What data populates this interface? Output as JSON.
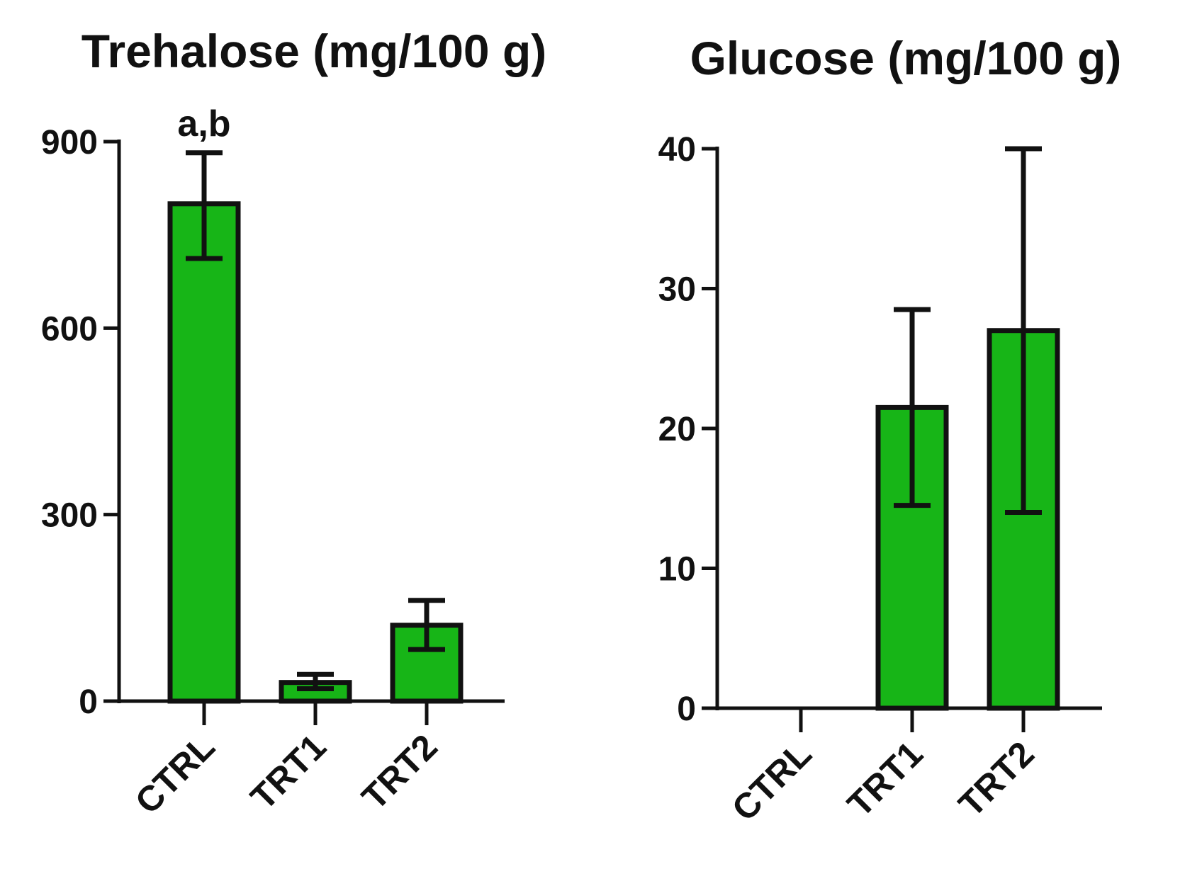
{
  "chart_data": [
    {
      "type": "bar",
      "title": "Trehalose (mg/100 g)",
      "xlabel": "",
      "ylabel": "",
      "categories": [
        "CTRL",
        "TRT1",
        "TRT2"
      ],
      "values": [
        800,
        30,
        122
      ],
      "errors": [
        [
          712,
          882
        ],
        [
          20,
          43
        ],
        [
          83,
          162
        ]
      ],
      "ylim": [
        0,
        900
      ],
      "yticks": [
        "0",
        "300",
        "600",
        "900"
      ],
      "annotations": [
        {
          "category": "CTRL",
          "text": "a,b"
        }
      ],
      "bar_color": "#17b517",
      "grid": false
    },
    {
      "type": "bar",
      "title": "Glucose (mg/100 g)",
      "xlabel": "",
      "ylabel": "",
      "categories": [
        "CTRL",
        "TRT1",
        "TRT2"
      ],
      "values": [
        0,
        21.5,
        27
      ],
      "errors": [
        null,
        [
          14.5,
          28.5
        ],
        [
          14,
          40
        ]
      ],
      "ylim": [
        0,
        40
      ],
      "yticks": [
        "0",
        "10",
        "20",
        "30",
        "40"
      ],
      "annotations": [],
      "bar_color": "#17b517",
      "grid": false
    }
  ]
}
